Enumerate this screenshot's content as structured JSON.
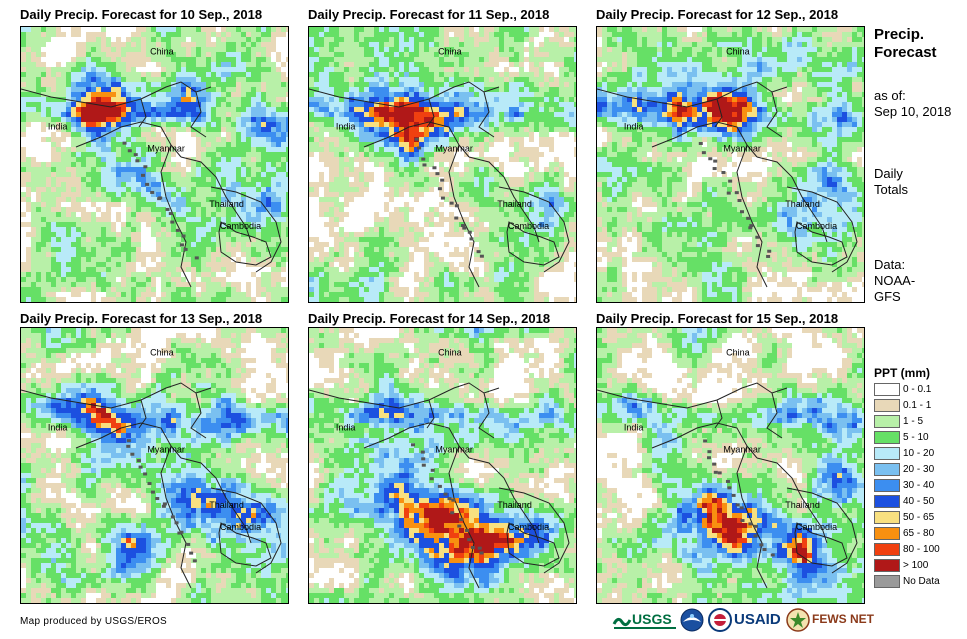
{
  "panels": [
    {
      "title": "Daily Precip. Forecast for 10 Sep., 2018",
      "labels": [
        "China",
        "India",
        "Myanmar",
        "Thailand",
        "Cambodia"
      ]
    },
    {
      "title": "Daily Precip. Forecast for 11 Sep., 2018",
      "labels": [
        "China",
        "India",
        "Myanmar",
        "Thailand",
        "Cambodia"
      ]
    },
    {
      "title": "Daily Precip. Forecast for 12 Sep., 2018",
      "labels": [
        "China",
        "India",
        "Myanmar",
        "Thailand",
        "Cambodia"
      ]
    },
    {
      "title": "Daily Precip. Forecast for 13 Sep., 2018",
      "labels": [
        "China",
        "India",
        "Myanmar",
        "Thailand",
        "Cambodia"
      ]
    },
    {
      "title": "Daily Precip. Forecast for 14 Sep., 2018",
      "labels": [
        "China",
        "India",
        "Myanmar",
        "Thailand",
        "Cambodia"
      ]
    },
    {
      "title": "Daily Precip. Forecast for 15 Sep., 2018",
      "labels": [
        "China",
        "India",
        "Myanmar",
        "Thailand",
        "Cambodia"
      ]
    }
  ],
  "side": {
    "title_line1": "Precip.",
    "title_line2": "Forecast",
    "asof_line1": "as of:",
    "asof_line2": "Sep 10, 2018",
    "totals_line1": "Daily",
    "totals_line2": "Totals",
    "data_line1": "Data:",
    "data_line2": "NOAA-",
    "data_line3": "GFS"
  },
  "legend": {
    "title": "PPT (mm)",
    "items": [
      {
        "label": "0 - 0.1",
        "color": "#ffffff"
      },
      {
        "label": "0.1 - 1",
        "color": "#e8d8b8"
      },
      {
        "label": "1 - 5",
        "color": "#b8f0a8"
      },
      {
        "label": "5 - 10",
        "color": "#66e066"
      },
      {
        "label": "10 - 20",
        "color": "#b8eaf8"
      },
      {
        "label": "20 - 30",
        "color": "#7ac0f0"
      },
      {
        "label": "30 - 40",
        "color": "#3c8ef0"
      },
      {
        "label": "40 - 50",
        "color": "#1c50e0"
      },
      {
        "label": "50 - 65",
        "color": "#f8e080"
      },
      {
        "label": "65 - 80",
        "color": "#f89010"
      },
      {
        "label": "80 - 100",
        "color": "#f04010"
      },
      {
        "label": "> 100",
        "color": "#b01818"
      },
      {
        "label": "No Data",
        "color": "#9a9a9a"
      }
    ]
  },
  "credit": "Map produced by USGS/EROS",
  "logos": {
    "usgs": "USGS",
    "usaid": "USAID",
    "fewsnet": "FEWS NET"
  }
}
